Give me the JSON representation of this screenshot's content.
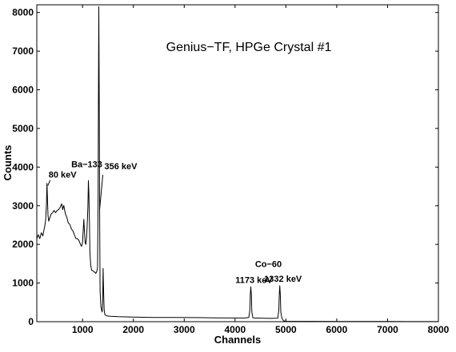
{
  "chart_data": {
    "type": "line",
    "title": "Genius−TF, HPGe Crystal #1",
    "xlabel": "Channels",
    "ylabel": "Counts",
    "xlim": [
      100,
      8000
    ],
    "ylim": [
      0,
      8200
    ],
    "x_ticks": [
      1000,
      2000,
      3000,
      4000,
      5000,
      6000,
      7000,
      8000
    ],
    "y_ticks": [
      0,
      1000,
      2000,
      3000,
      4000,
      5000,
      6000,
      7000,
      8000
    ],
    "grid": false,
    "legend": "none",
    "colors": {
      "line": "#000000",
      "axes": "#000000",
      "background": "#ffffff"
    },
    "series": [
      {
        "values": [
          [
            100,
            2150
          ],
          [
            130,
            2250
          ],
          [
            160,
            2150
          ],
          [
            190,
            2300
          ],
          [
            220,
            2220
          ],
          [
            245,
            2400
          ],
          [
            260,
            2500
          ],
          [
            275,
            2650
          ],
          [
            290,
            3050
          ],
          [
            300,
            3580
          ],
          [
            310,
            3200
          ],
          [
            320,
            2750
          ],
          [
            335,
            2600
          ],
          [
            355,
            2680
          ],
          [
            380,
            2780
          ],
          [
            410,
            2820
          ],
          [
            440,
            2880
          ],
          [
            470,
            2820
          ],
          [
            500,
            2880
          ],
          [
            530,
            2900
          ],
          [
            560,
            2960
          ],
          [
            590,
            3050
          ],
          [
            610,
            2900
          ],
          [
            630,
            3010
          ],
          [
            660,
            2800
          ],
          [
            690,
            2700
          ],
          [
            720,
            2550
          ],
          [
            750,
            2520
          ],
          [
            780,
            2400
          ],
          [
            810,
            2350
          ],
          [
            840,
            2250
          ],
          [
            870,
            2150
          ],
          [
            900,
            2150
          ],
          [
            930,
            2100
          ],
          [
            960,
            2000
          ],
          [
            980,
            1950
          ],
          [
            1000,
            2050
          ],
          [
            1015,
            2400
          ],
          [
            1025,
            2650
          ],
          [
            1035,
            2400
          ],
          [
            1050,
            2050
          ],
          [
            1065,
            2000
          ],
          [
            1080,
            2200
          ],
          [
            1095,
            2600
          ],
          [
            1105,
            3000
          ],
          [
            1115,
            3650
          ],
          [
            1125,
            3300
          ],
          [
            1135,
            2600
          ],
          [
            1145,
            1800
          ],
          [
            1160,
            1450
          ],
          [
            1180,
            1330
          ],
          [
            1200,
            1320
          ],
          [
            1220,
            1300
          ],
          [
            1240,
            1280
          ],
          [
            1260,
            1250
          ],
          [
            1280,
            1300
          ],
          [
            1295,
            1400
          ],
          [
            1305,
            3000
          ],
          [
            1313,
            6000
          ],
          [
            1320,
            8150
          ],
          [
            1327,
            6000
          ],
          [
            1335,
            3000
          ],
          [
            1345,
            800
          ],
          [
            1360,
            400
          ],
          [
            1375,
            300
          ],
          [
            1385,
            250
          ],
          [
            1395,
            500
          ],
          [
            1405,
            1380
          ],
          [
            1415,
            700
          ],
          [
            1425,
            300
          ],
          [
            1440,
            180
          ],
          [
            1480,
            150
          ],
          [
            1550,
            140
          ],
          [
            1700,
            130
          ],
          [
            2000,
            120
          ],
          [
            2400,
            110
          ],
          [
            2800,
            110
          ],
          [
            3200,
            105
          ],
          [
            3600,
            100
          ],
          [
            4000,
            95
          ],
          [
            4200,
            95
          ],
          [
            4270,
            110
          ],
          [
            4290,
            300
          ],
          [
            4300,
            700
          ],
          [
            4310,
            900
          ],
          [
            4320,
            700
          ],
          [
            4330,
            250
          ],
          [
            4350,
            100
          ],
          [
            4500,
            90
          ],
          [
            4700,
            85
          ],
          [
            4840,
            90
          ],
          [
            4860,
            300
          ],
          [
            4870,
            700
          ],
          [
            4880,
            930
          ],
          [
            4890,
            700
          ],
          [
            4900,
            250
          ],
          [
            4920,
            90
          ],
          [
            4950,
            30
          ],
          [
            4975,
            15
          ],
          [
            5000,
            10
          ],
          [
            5500,
            8
          ],
          [
            6000,
            6
          ],
          [
            6500,
            5
          ],
          [
            7000,
            4
          ],
          [
            7500,
            3
          ],
          [
            8000,
            3
          ]
        ]
      }
    ],
    "annotations": [
      {
        "text": "80 keV",
        "x": 300,
        "y": 3580
      },
      {
        "text": "Ba−133",
        "x": 1115,
        "y": 3650
      },
      {
        "text": "356 keV",
        "x": 1320,
        "y": 8150
      },
      {
        "text": "Co−60",
        "x": 4310,
        "y": 900
      },
      {
        "text": "1173 keV",
        "x": 4310,
        "y": 900
      },
      {
        "text": "1332 keV",
        "x": 4880,
        "y": 930
      }
    ]
  }
}
